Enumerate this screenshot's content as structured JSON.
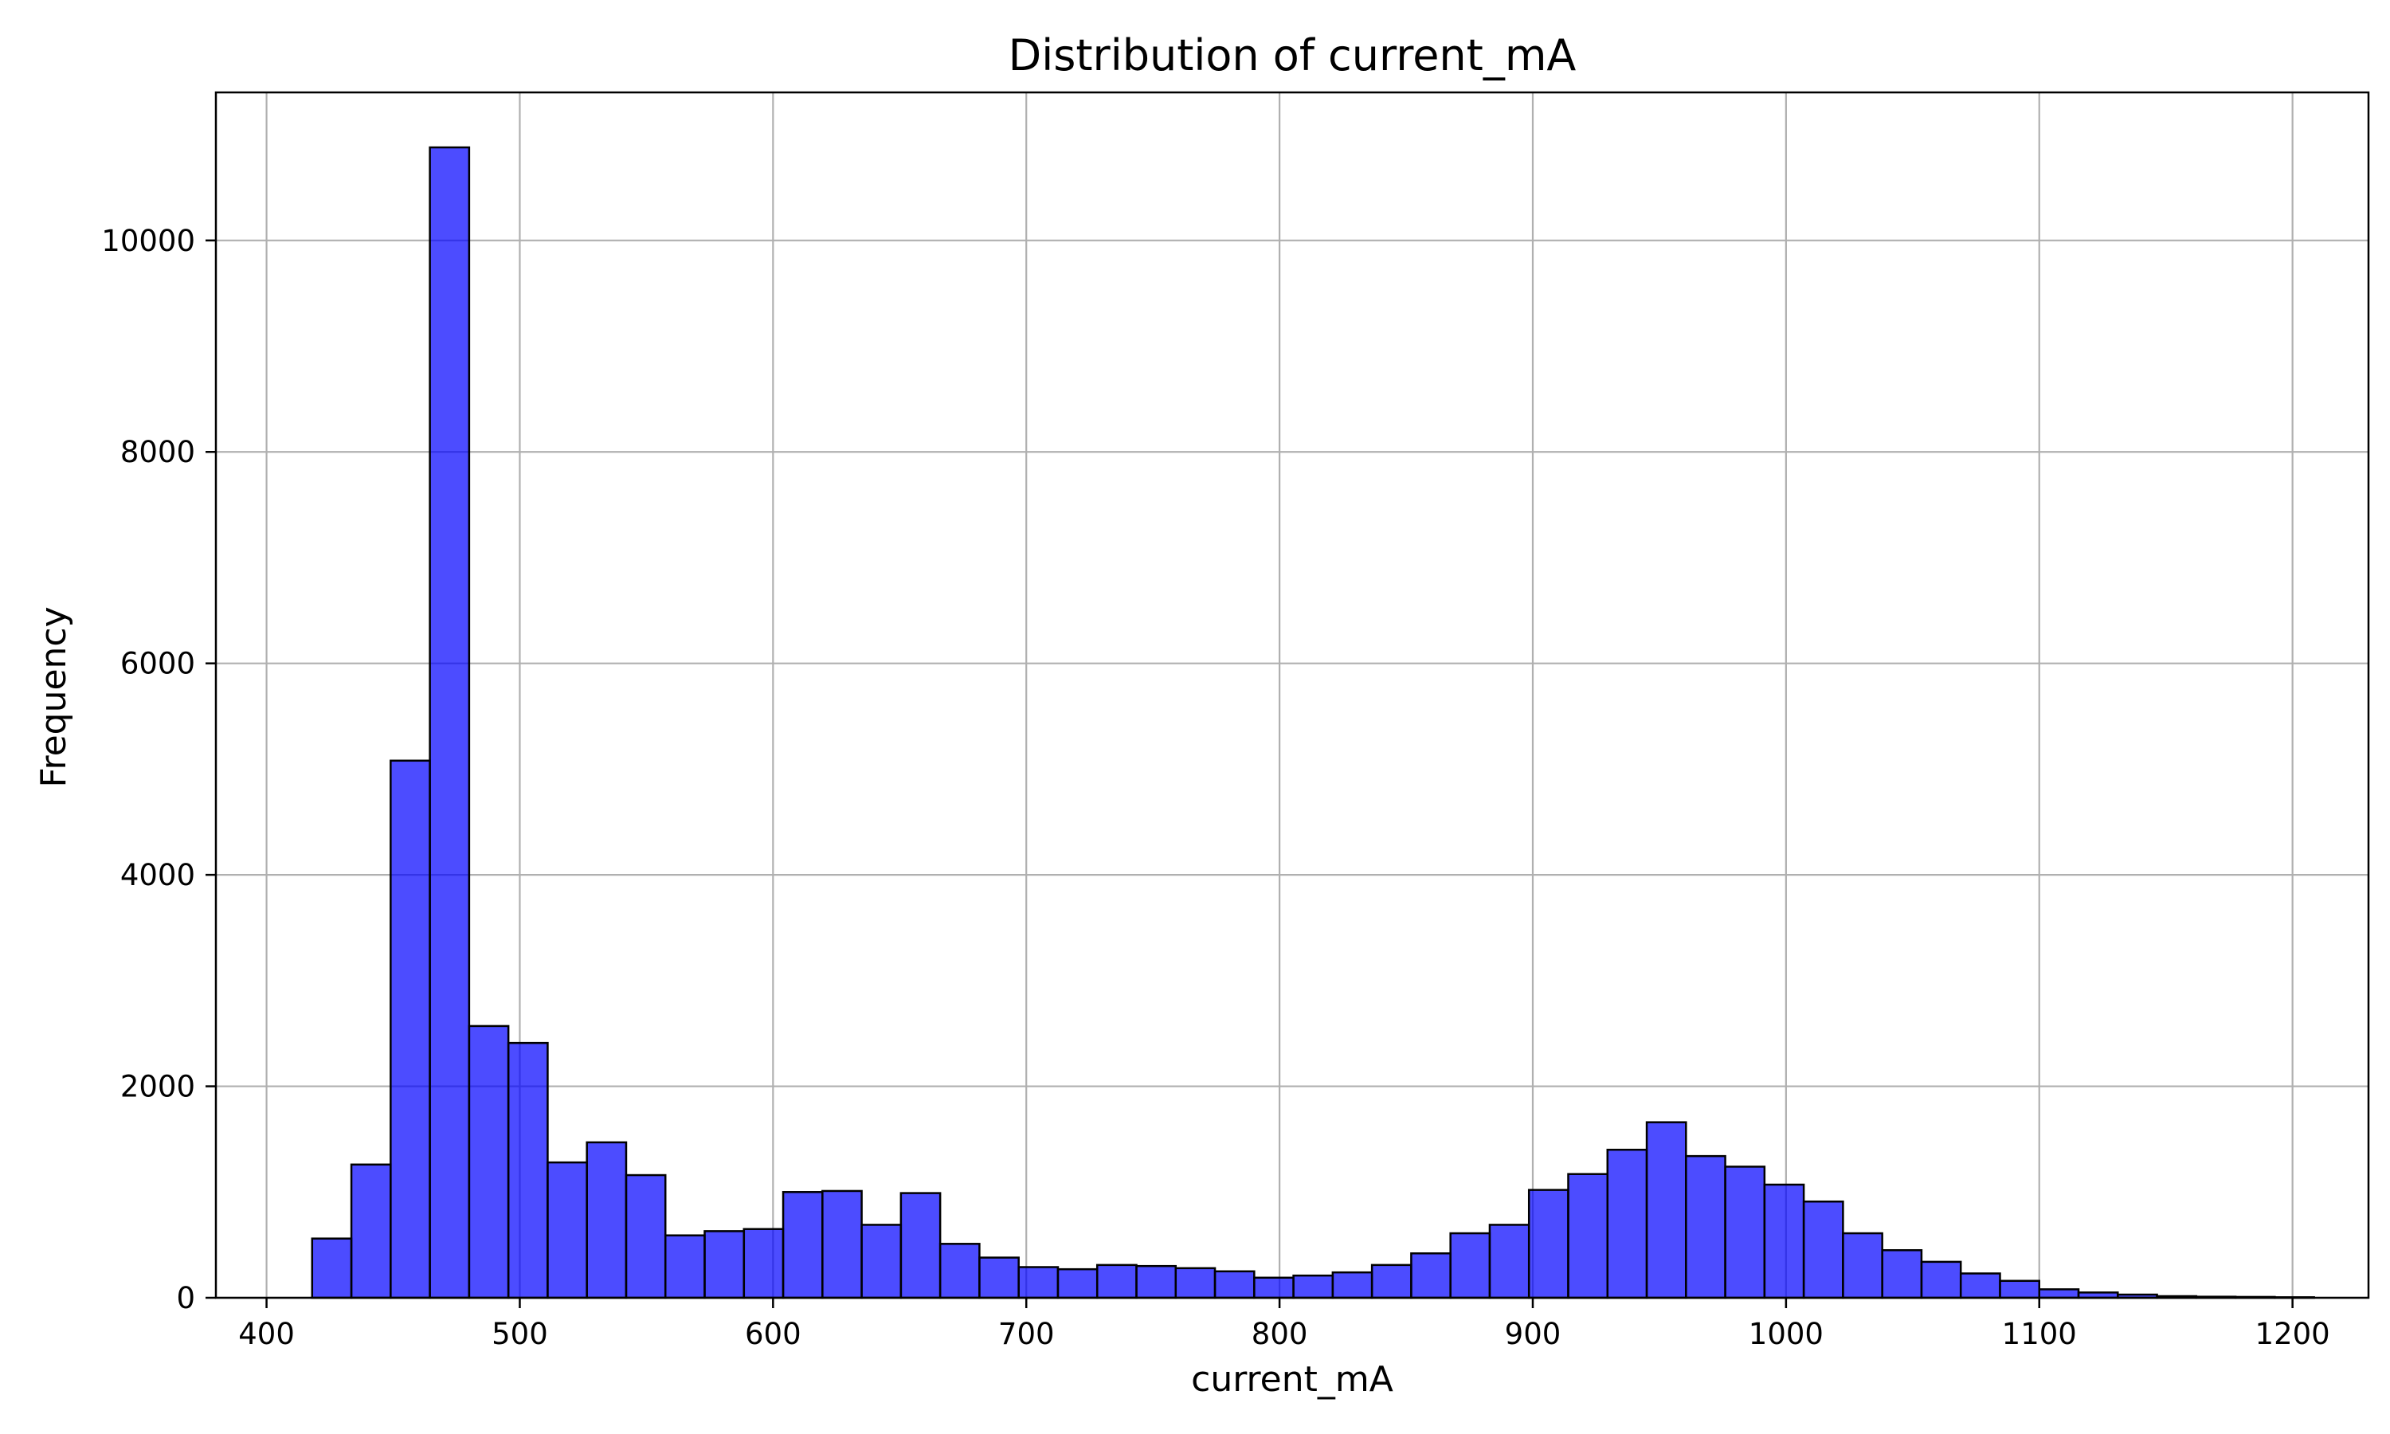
{
  "chart_data": {
    "type": "bar",
    "title": "Distribution of current_mA",
    "xlabel": "current_mA",
    "ylabel": "Frequency",
    "xlim": [
      380,
      1230
    ],
    "ylim": [
      0,
      11400
    ],
    "xticks": [
      400,
      500,
      600,
      700,
      800,
      900,
      1000,
      1100,
      1200
    ],
    "yticks": [
      0,
      2000,
      4000,
      6000,
      8000,
      10000
    ],
    "grid": true,
    "bins": {
      "start": 418,
      "width": 15.5,
      "counts": [
        560,
        1260,
        5080,
        10880,
        2570,
        2410,
        1280,
        1470,
        1160,
        590,
        630,
        650,
        1000,
        1010,
        690,
        990,
        510,
        380,
        290,
        270,
        310,
        300,
        280,
        250,
        190,
        210,
        240,
        310,
        420,
        610,
        690,
        1020,
        1170,
        1400,
        1660,
        1340,
        1240,
        1070,
        910,
        610,
        450,
        340,
        230,
        160,
        80,
        50,
        30,
        15,
        10,
        8,
        5
      ]
    },
    "colors": {
      "bar_fill": "#0000ff",
      "bar_opacity": 0.7,
      "bar_edge": "#000000",
      "grid": "#b0b0b0"
    }
  }
}
